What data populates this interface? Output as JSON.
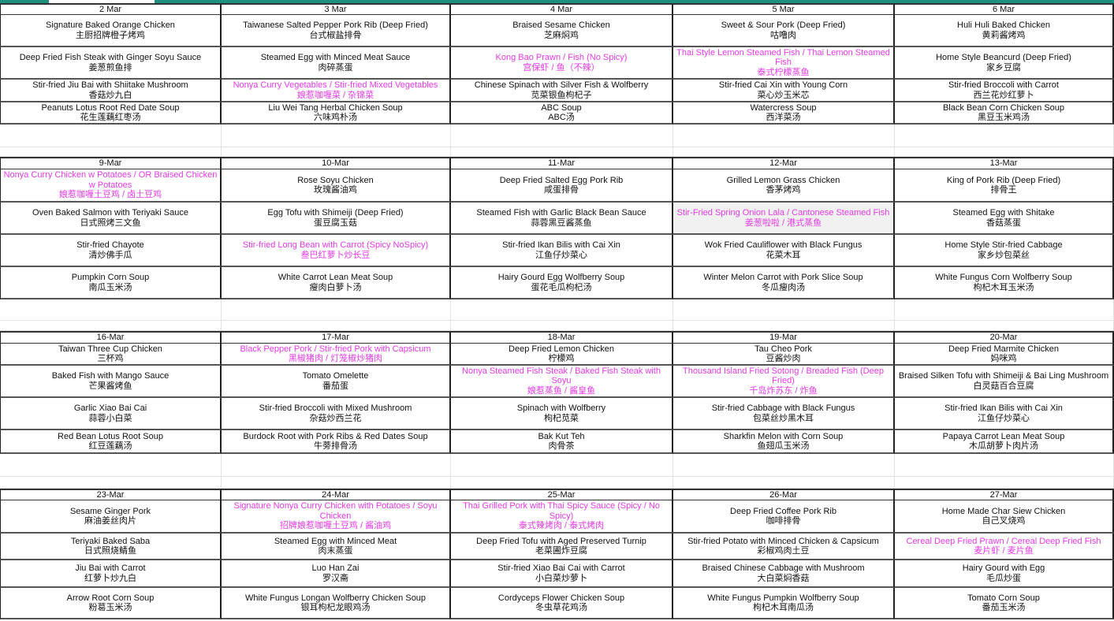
{
  "colors": {
    "highlight": "#e53be5",
    "topbar": "#1f8f7f",
    "shaded_cell": "#f1f1f1"
  },
  "weeks": [
    {
      "days": [
        {
          "date": "2 Mar",
          "dishes": [
            {
              "en": "Signature Baked Orange Chicken",
              "zh": "主厨招牌橙子烤鸡"
            },
            {
              "en": "Deep Fried Fish Steak with Ginger Soyu Sauce",
              "zh": "姜葱煎鱼排"
            },
            {
              "en": "Stir-fried Jiu Bai with Shiitake Mushroom",
              "zh": "香菇炒九白"
            },
            {
              "en": "Peanuts Lotus Root Red Date Soup",
              "zh": "花生莲藕红枣汤"
            }
          ]
        },
        {
          "date": "3 Mar",
          "dishes": [
            {
              "en": "Taiwanese Salted Pepper Pork Rib (Deep Fried)",
              "zh": "台式椒盐排骨"
            },
            {
              "en": "Steamed Egg with Minced Meat Sauce",
              "zh": "肉碎蒸蛋"
            },
            {
              "en": "Nonya Curry Vegetables / Stir-fried Mixed Vegetables",
              "zh": "娘惹咖喱菜 / 杂锦菜",
              "highlight": true
            },
            {
              "en": "Liu Wei Tang Herbal Chicken Soup",
              "zh": "六味鸡朴汤"
            }
          ]
        },
        {
          "date": "4 Mar",
          "dishes": [
            {
              "en": "Braised Sesame Chicken",
              "zh": "芝麻焖鸡"
            },
            {
              "en": "Kong Bao Prawn /  Fish (No Spicy)",
              "zh": "宫保虾 / 鱼（不辣）",
              "highlight": true
            },
            {
              "en": "Chinese Spinach with Silver Fish & Wolfberry",
              "zh": "苋菜银鱼枸杞子"
            },
            {
              "en": "ABC Soup",
              "zh": "ABC汤"
            }
          ]
        },
        {
          "date": "5 Mar",
          "dishes": [
            {
              "en": "Sweet & Sour Pork (Deep Fried)",
              "zh": "咕噜肉"
            },
            {
              "en": "Thai Style Lemon Steamed Fish / Thai Lemon Steamed Fish",
              "zh": "泰式柠檬蒸鱼",
              "highlight": true
            },
            {
              "en": "Stir-fried Cai Xin with Young Corn",
              "zh": "菜心炒玉米芯"
            },
            {
              "en": "Watercress Soup",
              "zh": "西洋菜汤"
            }
          ]
        },
        {
          "date": "6 Mar",
          "dishes": [
            {
              "en": "Huli Huli Baked Chicken",
              "zh": "黄莉酱烤鸡"
            },
            {
              "en": "Home Style Beancurd (Deep Fried)",
              "zh": "家乡豆腐"
            },
            {
              "en": "Stir-fried Broccoli with Carrot",
              "zh": "西兰花炒红萝卜"
            },
            {
              "en": "Black Bean Corn Chicken Soup",
              "zh": "黑豆玉米鸡汤"
            }
          ]
        }
      ]
    },
    {
      "days": [
        {
          "date": "9-Mar",
          "dishes": [
            {
              "en": "Nonya Curry Chicken w Potatoes / OR Braised Chicken w Potatoes",
              "zh": "娘惹咖喱土豆鸡 / 卤土豆鸡",
              "highlight": true
            },
            {
              "en": "Oven Baked Salmon with Teriyaki Sauce",
              "zh": "日式照烤三文鱼"
            },
            {
              "en": "Stir-fried Chayote",
              "zh": "清炒佛手瓜"
            },
            {
              "en": "Pumpkin Corn Soup",
              "zh": "南瓜玉米汤"
            }
          ]
        },
        {
          "date": "10-Mar",
          "dishes": [
            {
              "en": "Rose Soyu Chicken",
              "zh": "玫瑰酱油鸡"
            },
            {
              "en": "Egg Tofu with Shimeiji (Deep Fried)",
              "zh": "蛋豆腐玉菇"
            },
            {
              "en": "Stir-fried Long Bean with Carrot (Spicy  NoSpicy)",
              "zh": "叁巴红萝卜炒长豆",
              "highlight": true
            },
            {
              "en": "White Carrot Lean Meat Soup",
              "zh": "瘦肉白萝卜汤"
            }
          ]
        },
        {
          "date": "11-Mar",
          "dishes": [
            {
              "en": "Deep Fried Salted Egg Pork Rib",
              "zh": "咸蛋排骨"
            },
            {
              "en": "Steamed Fish with Garlic Black Bean Sauce",
              "zh": "蒜蓉黑豆酱蒸鱼"
            },
            {
              "en": "Stir-fried Ikan Bilis with Cai Xin",
              "zh": "江鱼仔炒菜心"
            },
            {
              "en": "Hairy Gourd Egg Wolfberry Soup",
              "zh": "蛋花毛瓜枸杞汤"
            }
          ]
        },
        {
          "date": "12-Mar",
          "dishes": [
            {
              "en": "Grilled Lemon Grass Chicken",
              "zh": "香茅烤鸡"
            },
            {
              "en": "Stir-Fried Spring Onion Lala /  Cantonese Steamed Fish",
              "zh": "姜葱啦啦 / 港式蒸鱼",
              "highlight": true,
              "shaded": true
            },
            {
              "en": "Wok Fried Cauliflower with Black Fungus",
              "zh": "花菜木耳"
            },
            {
              "en": "Winter Melon Carrot with Pork Slice Soup",
              "zh": "冬瓜瘦肉汤"
            }
          ]
        },
        {
          "date": "13-Mar",
          "dishes": [
            {
              "en": "King of Pork Rib (Deep Fried)",
              "zh": "排骨王"
            },
            {
              "en": "Steamed Egg with Shitake",
              "zh": "香菇蒸蛋"
            },
            {
              "en": "Home Style Stir-fried Cabbage",
              "zh": "家乡炒包菜丝"
            },
            {
              "en": "White Fungus Corn Wolfberry Soup",
              "zh": "枸杞木耳玉米汤"
            }
          ]
        }
      ]
    },
    {
      "days": [
        {
          "date": "16-Mar",
          "dishes": [
            {
              "en": "Taiwan Three Cup Chicken",
              "zh": "三杯鸡"
            },
            {
              "en": "Baked Fish with Mango Sauce",
              "zh": "芒果酱烤鱼"
            },
            {
              "en": "Garlic Xiao Bai Cai",
              "zh": "蒜蓉小白菜"
            },
            {
              "en": "Red Bean Lotus Root Soup",
              "zh": "红豆莲藕汤"
            }
          ]
        },
        {
          "date": "17-Mar",
          "dishes": [
            {
              "en": "Black Pepper Pork / Stir-fried Pork with Capsicum",
              "zh": "黑椒猪肉 / 灯笼椒炒猪肉",
              "highlight": true
            },
            {
              "en": "Tomato Omelette",
              "zh": "番茄蛋"
            },
            {
              "en": "Stir-fried Broccoli with Mixed Mushroom",
              "zh": "杂菇炒西兰花"
            },
            {
              "en": "Burdock Root with Pork Ribs & Red Dates Soup",
              "zh": "牛蒡排骨汤"
            }
          ]
        },
        {
          "date": "18-Mar",
          "dishes": [
            {
              "en": "Deep Fried Lemon Chicken",
              "zh": "柠檬鸡"
            },
            {
              "en": "Nonya Steamed Fish Steak /  Baked Fish Steak with Soyu",
              "zh": "娘惹蒸鱼 / 酱皇鱼",
              "highlight": true
            },
            {
              "en": "Spinach with Wolfberry",
              "zh": "枸杞苋菜"
            },
            {
              "en": "Bak Kut Teh",
              "zh": "肉骨茶"
            }
          ]
        },
        {
          "date": "19-Mar",
          "dishes": [
            {
              "en": "Tau Cheo Pork",
              "zh": "豆酱炒肉"
            },
            {
              "en": "Thousand Island Fried Sotong /  Breaded Fish (Deep Fried)",
              "zh": "千岛炸苏东 / 炸鱼",
              "highlight": true
            },
            {
              "en": "Stir-fried Cabbage with Black Fungus",
              "zh": "包菜丝炒黑木耳"
            },
            {
              "en": "Sharkfin Melon with Corn Soup",
              "zh": "鱼翅瓜玉米汤"
            }
          ]
        },
        {
          "date": "20-Mar",
          "dishes": [
            {
              "en": "Deep Fried Marmite Chicken",
              "zh": "妈咪鸡"
            },
            {
              "en": "Braised Silken Tofu with Shimeiji & Bai Ling Mushroom",
              "zh": "白灵菇百合豆腐"
            },
            {
              "en": "Stir-fried Ikan Bilis with Cai Xin",
              "zh": "江鱼仔炒菜心"
            },
            {
              "en": "Papaya Carrot Lean Meat Soup",
              "zh": "木瓜胡萝卜肉片汤"
            }
          ]
        }
      ]
    },
    {
      "days": [
        {
          "date": "23-Mar",
          "dishes": [
            {
              "en": "Sesame Ginger Pork",
              "zh": "麻油姜丝肉片"
            },
            {
              "en": "Teriyaki Baked Saba",
              "zh": "日式照烧鲭鱼"
            },
            {
              "en": "Jiu Bai with Carrot",
              "zh": "红萝卜炒九白"
            },
            {
              "en": "Arrow Root Corn Soup",
              "zh": "粉葛玉米汤"
            }
          ]
        },
        {
          "date": "24-Mar",
          "dishes": [
            {
              "en": "Signature Nonya Curry Chicken with Potatoes /  Soyu Chicken",
              "zh": "招牌娘惹咖喱土豆鸡 / 酱油鸡",
              "highlight": true
            },
            {
              "en": "Steamed Egg with Minced Meat",
              "zh": "肉末蒸蛋"
            },
            {
              "en": "Luo Han Zai",
              "zh": "罗汉斋"
            },
            {
              "en": "White Fungus Longan Wolfberry Chicken Soup",
              "zh": "银耳枸杞龙眼鸡汤"
            }
          ]
        },
        {
          "date": "25-Mar",
          "dishes": [
            {
              "en": "Thai Grilled Pork with Thai Spicy Sauce (Spicy / No Spicy)",
              "zh": "泰式辣烤肉 / 泰式烤肉",
              "highlight": true
            },
            {
              "en": "Deep Fried Tofu with Aged Preserved Turnip",
              "zh": "老菜圃炸豆腐"
            },
            {
              "en": "Stir-fried Xiao Bai Cai with Carrot",
              "zh": "小白菜炒萝卜"
            },
            {
              "en": "Cordyceps Flower Chicken Soup",
              "zh": "冬虫草花鸡汤"
            }
          ]
        },
        {
          "date": "26-Mar",
          "dishes": [
            {
              "en": "Deep Fried Coffee Pork Rib",
              "zh": "咖啡排骨"
            },
            {
              "en": "Stir-fried Potato with Minced Chicken & Capsicum",
              "zh": "彩椒鸡肉土豆"
            },
            {
              "en": "Braised Chinese Cabbage with Mushroom",
              "zh": "大白菜焖香菇"
            },
            {
              "en": "White Fungus Pumpkin Wolfberry Soup",
              "zh": "枸杞木耳南瓜汤"
            }
          ]
        },
        {
          "date": "27-Mar",
          "dishes": [
            {
              "en": "Home Made Char Siew Chicken",
              "zh": "自己叉烧鸡"
            },
            {
              "en": "Cereal Deep Fried Prawn / Cereal Deep Fried Fish",
              "zh": "麦片虾 / 麦片鱼",
              "highlight": true
            },
            {
              "en": "Hairy Gourd with Egg",
              "zh": "毛瓜炒蛋"
            },
            {
              "en": "Tomato Corn Soup",
              "zh": "番茄玉米汤"
            }
          ]
        }
      ]
    }
  ]
}
